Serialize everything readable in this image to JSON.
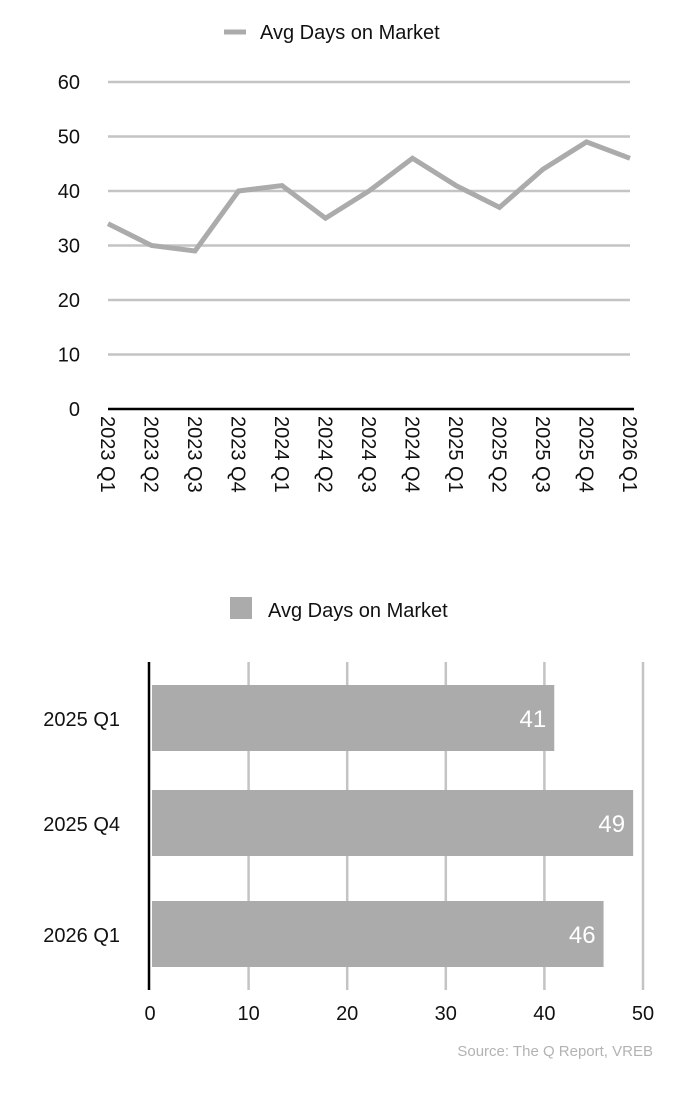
{
  "chart_data": [
    {
      "type": "line",
      "legend": "top",
      "grid": true,
      "categories": [
        "2023 Q1",
        "2023 Q2",
        "2023 Q3",
        "2023 Q4",
        "2024 Q1",
        "2024 Q2",
        "2024 Q3",
        "2024 Q4",
        "2025 Q1",
        "2025 Q2",
        "2025 Q3",
        "2025 Q4",
        "2026 Q1"
      ],
      "series": [
        {
          "name": "Avg Days on Market",
          "values": [
            34,
            30,
            29,
            40,
            41,
            35,
            40,
            46,
            41,
            37,
            44,
            49,
            46
          ],
          "color": "#ababab"
        }
      ],
      "ylim": [
        0,
        60
      ],
      "yticks": [
        "0",
        "10",
        "20",
        "30",
        "40",
        "50",
        "60"
      ]
    },
    {
      "type": "bar",
      "orientation": "horizontal",
      "legend": "top",
      "grid": true,
      "categories": [
        "2025 Q1",
        "2025 Q4",
        "2026 Q1"
      ],
      "series": [
        {
          "name": "Avg Days on Market",
          "values": [
            41,
            49,
            46
          ],
          "color": "#ababab"
        }
      ],
      "data_labels": [
        "41",
        "49",
        "46"
      ],
      "xlim": [
        0,
        50
      ],
      "xticks": [
        "0",
        "10",
        "20",
        "30",
        "40",
        "50"
      ]
    }
  ],
  "source": "Source: The Q Report, VREB"
}
